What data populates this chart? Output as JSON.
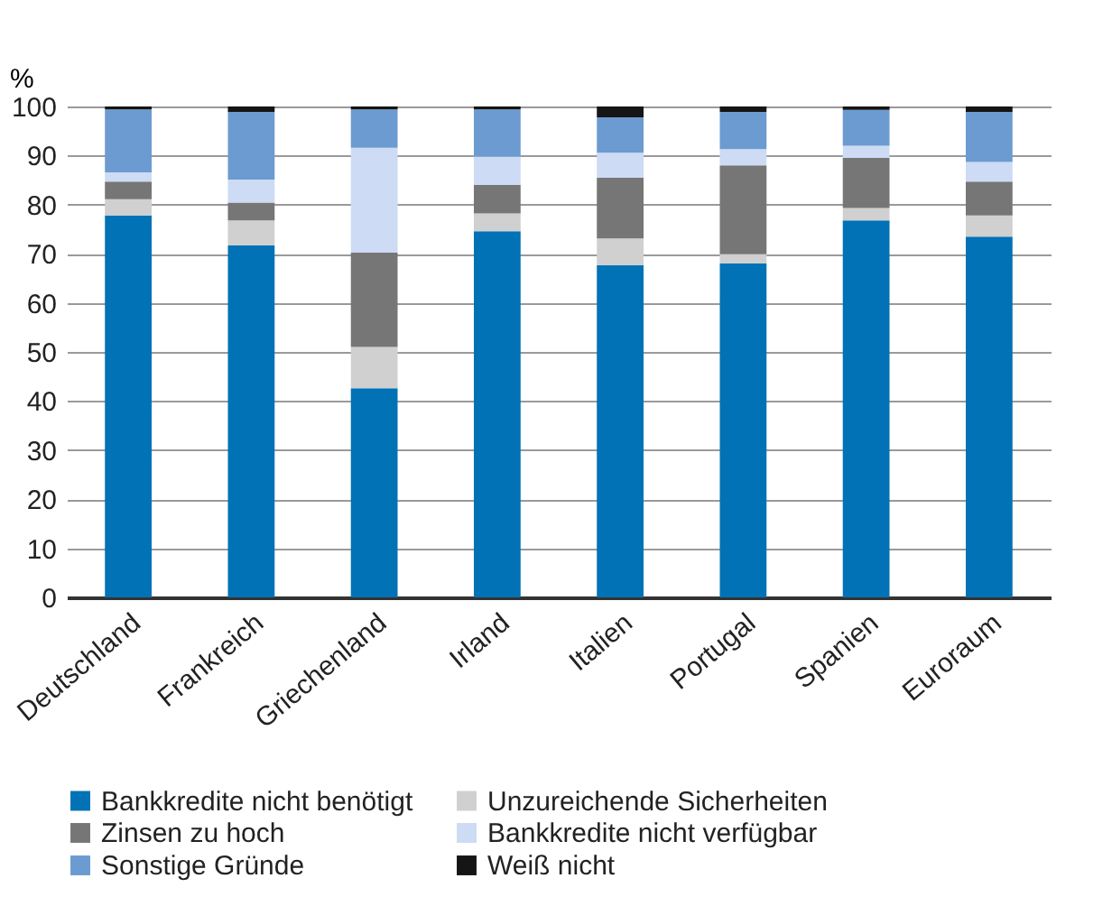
{
  "chart_data": {
    "type": "bar",
    "stacked": true,
    "ylabel": "%",
    "ylim": [
      0,
      100
    ],
    "yticks": [
      0,
      10,
      20,
      30,
      40,
      50,
      60,
      70,
      80,
      90,
      100
    ],
    "grid": "y",
    "legend": "bottom",
    "categories": [
      "Deutschland",
      "Frankreich",
      "Griechenland",
      "Irland",
      "Italien",
      "Portugal",
      "Spanien",
      "Euroraum"
    ],
    "series": [
      {
        "name": "Bankkredite nicht benötigt",
        "color": "#0072b5",
        "values": [
          77.8,
          71.7,
          42.6,
          74.6,
          67.7,
          68.0,
          76.8,
          73.5
        ]
      },
      {
        "name": "Unzureichende Sicherheiten",
        "color": "#cfd0cf",
        "values": [
          3.3,
          5.1,
          8.4,
          3.6,
          5.4,
          1.9,
          2.5,
          4.3
        ]
      },
      {
        "name": "Zinsen zu hoch",
        "color": "#767676",
        "values": [
          3.6,
          3.6,
          19.2,
          5.8,
          12.4,
          18.1,
          10.2,
          6.9
        ]
      },
      {
        "name": "Bankkredite nicht verfügbar",
        "color": "#cddbf4",
        "values": [
          1.9,
          4.7,
          21.4,
          5.8,
          5.1,
          3.3,
          2.5,
          4.0
        ]
      },
      {
        "name": "Sonstige Gründe",
        "color": "#6b9bd0",
        "values": [
          12.8,
          13.8,
          7.8,
          9.6,
          7.2,
          7.6,
          7.3,
          10.2
        ]
      },
      {
        "name": "Weiß nicht",
        "color": "#151515",
        "values": [
          0.6,
          1.1,
          0.6,
          0.6,
          2.2,
          1.1,
          0.7,
          1.1
        ]
      }
    ]
  }
}
